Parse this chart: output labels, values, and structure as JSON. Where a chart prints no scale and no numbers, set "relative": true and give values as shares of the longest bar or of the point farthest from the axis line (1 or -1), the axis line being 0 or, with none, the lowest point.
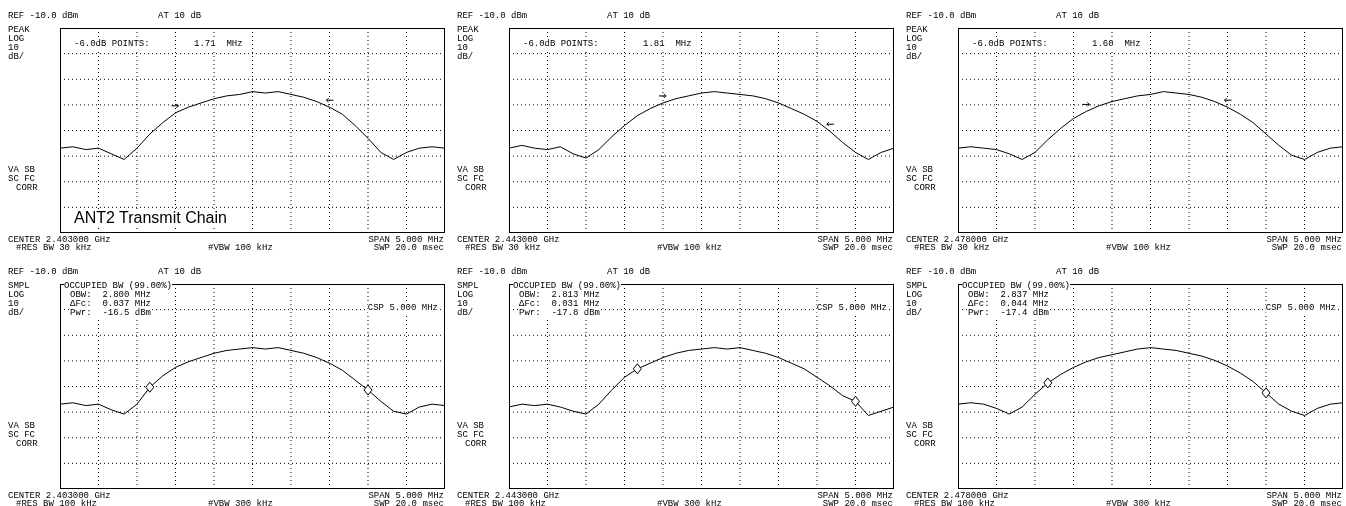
{
  "chart_data": [
    {
      "type": "line",
      "relative": true,
      "grid": true,
      "title": "ANT2 Transmit Chain",
      "categories": [
        null,
        null,
        null,
        null,
        null,
        null,
        null,
        null,
        null,
        null,
        null,
        null,
        null,
        null,
        null,
        null,
        null,
        null,
        null,
        null,
        null,
        null,
        null,
        null,
        null,
        null,
        null,
        null,
        null,
        null,
        null
      ],
      "annotations": [
        "REF -10.0 dBm",
        "AT 10 dB",
        "PEAK",
        "LOG",
        "10",
        "dB/",
        "-6.0dB POINTS:",
        "1.71  MHz",
        "VA SB",
        "SC FC",
        "CORR",
        "CENTER 2.403000 GHz",
        "#RES BW 30 kHz",
        "#VBW 100 kHz",
        "SPAN 5.000 MHz",
        "SWP 20.0 msec"
      ],
      "series": [
        {
          "color": "#000000",
          "values": [
            0.6,
            0.61,
            0.59,
            0.6,
            0.56,
            0.52,
            0.6,
            0.7,
            0.78,
            0.85,
            0.89,
            0.92,
            0.95,
            0.97,
            0.98,
            1.0,
            0.99,
            1.0,
            0.98,
            0.96,
            0.93,
            0.89,
            0.84,
            0.76,
            0.67,
            0.57,
            0.52,
            0.57,
            0.6,
            0.61,
            0.6
          ]
        }
      ]
    },
    {
      "type": "line",
      "relative": true,
      "grid": true,
      "categories": [
        null,
        null,
        null,
        null,
        null,
        null,
        null,
        null,
        null,
        null,
        null,
        null,
        null,
        null,
        null,
        null,
        null,
        null,
        null,
        null,
        null,
        null,
        null,
        null,
        null,
        null,
        null,
        null,
        null,
        null,
        null
      ],
      "annotations": [
        "REF -10.0 dBm",
        "AT 10 dB",
        "PEAK",
        "LOG",
        "10",
        "dB/",
        "-6.0dB POINTS:",
        "1.81  MHz",
        "VA SB",
        "SC FC",
        "CORR",
        "CENTER 2.443000 GHz",
        "#RES BW 30 kHz",
        "#VBW 100 kHz",
        "SPAN 5.000 MHz",
        "SWP 20.0 msec"
      ],
      "series": [
        {
          "color": "#000000",
          "values": [
            0.6,
            0.62,
            0.6,
            0.59,
            0.61,
            0.56,
            0.53,
            0.59,
            0.68,
            0.76,
            0.83,
            0.88,
            0.92,
            0.95,
            0.97,
            0.99,
            1.0,
            0.99,
            0.98,
            0.97,
            0.95,
            0.92,
            0.88,
            0.84,
            0.79,
            0.72,
            0.64,
            0.57,
            0.52,
            0.57,
            0.6
          ]
        }
      ]
    },
    {
      "type": "line",
      "relative": true,
      "grid": true,
      "categories": [
        null,
        null,
        null,
        null,
        null,
        null,
        null,
        null,
        null,
        null,
        null,
        null,
        null,
        null,
        null,
        null,
        null,
        null,
        null,
        null,
        null,
        null,
        null,
        null,
        null,
        null,
        null,
        null,
        null,
        null,
        null
      ],
      "annotations": [
        "REF -10.0 dBm",
        "AT 10 dB",
        "PEAK",
        "LOG",
        "10",
        "dB/",
        "-6.0dB POINTS:",
        "1.60  MHz",
        "VA SB",
        "SC FC",
        "CORR",
        "CENTER 2.478000 GHz",
        "#RES BW 30 kHz",
        "#VBW 100 kHz",
        "SPAN 5.000 MHz",
        "SWP 20.0 msec"
      ],
      "series": [
        {
          "color": "#000000",
          "values": [
            0.6,
            0.61,
            0.6,
            0.59,
            0.56,
            0.52,
            0.57,
            0.66,
            0.74,
            0.81,
            0.86,
            0.9,
            0.93,
            0.95,
            0.97,
            0.98,
            1.0,
            0.99,
            0.98,
            0.96,
            0.93,
            0.89,
            0.84,
            0.78,
            0.7,
            0.62,
            0.55,
            0.52,
            0.57,
            0.6,
            0.61
          ]
        }
      ]
    },
    {
      "type": "line",
      "relative": true,
      "grid": true,
      "categories": [
        null,
        null,
        null,
        null,
        null,
        null,
        null,
        null,
        null,
        null,
        null,
        null,
        null,
        null,
        null,
        null,
        null,
        null,
        null,
        null,
        null,
        null,
        null,
        null,
        null,
        null,
        null,
        null,
        null,
        null,
        null
      ],
      "annotations": [
        "REF -10.0 dBm",
        "AT 10 dB",
        "SMPL",
        "LOG",
        "10",
        "dB/",
        "OCCUPIED BW (99.00%)",
        "OBW:  2.800 MHz",
        "ΔFc:  0.037 MHz",
        "Pwr:  -16.5 dBm",
        "CSP 5.000 MHz",
        "VA SB",
        "SC FC",
        "CORR",
        "CENTER 2.403000 GHz",
        "#RES BW 100 kHz",
        "#VBW 300 kHz",
        "SPAN 5.000 MHz",
        "SWP 20.0 msec"
      ],
      "series": [
        {
          "color": "#000000",
          "values": [
            0.6,
            0.61,
            0.59,
            0.6,
            0.56,
            0.53,
            0.6,
            0.72,
            0.8,
            0.86,
            0.9,
            0.93,
            0.96,
            0.98,
            0.99,
            1.0,
            0.99,
            1.0,
            0.98,
            0.96,
            0.93,
            0.89,
            0.84,
            0.77,
            0.7,
            0.62,
            0.55,
            0.53,
            0.58,
            0.6,
            0.59
          ]
        }
      ]
    },
    {
      "type": "line",
      "relative": true,
      "grid": true,
      "categories": [
        null,
        null,
        null,
        null,
        null,
        null,
        null,
        null,
        null,
        null,
        null,
        null,
        null,
        null,
        null,
        null,
        null,
        null,
        null,
        null,
        null,
        null,
        null,
        null,
        null,
        null,
        null,
        null,
        null,
        null,
        null
      ],
      "annotations": [
        "REF -10.0 dBm",
        "AT 10 dB",
        "SMPL",
        "LOG",
        "10",
        "dB/",
        "OCCUPIED BW (99.00%)",
        "OBW:  2.813 MHz",
        "ΔFc:  0.031 MHz",
        "Pwr:  -17.8 dBm",
        "CSP 5.000 MHz",
        "VA SB",
        "SC FC",
        "CORR",
        "CENTER 2.443000 GHz",
        "#RES BW 100 kHz",
        "#VBW 300 kHz",
        "SPAN 5.000 MHz",
        "SWP 20.0 msec"
      ],
      "series": [
        {
          "color": "#000000",
          "values": [
            0.58,
            0.6,
            0.59,
            0.6,
            0.58,
            0.55,
            0.53,
            0.6,
            0.7,
            0.79,
            0.85,
            0.89,
            0.93,
            0.96,
            0.98,
            0.99,
            1.0,
            0.99,
            1.0,
            0.98,
            0.96,
            0.93,
            0.89,
            0.85,
            0.79,
            0.73,
            0.66,
            0.62,
            0.52,
            0.55,
            0.58
          ]
        }
      ]
    },
    {
      "type": "line",
      "relative": true,
      "grid": true,
      "categories": [
        null,
        null,
        null,
        null,
        null,
        null,
        null,
        null,
        null,
        null,
        null,
        null,
        null,
        null,
        null,
        null,
        null,
        null,
        null,
        null,
        null,
        null,
        null,
        null,
        null,
        null,
        null,
        null,
        null,
        null,
        null
      ],
      "annotations": [
        "REF -10.0 dBm",
        "AT 10 dB",
        "SMPL",
        "LOG",
        "10",
        "dB/",
        "OCCUPIED BW (99.00%)",
        "OBW:  2.837 MHz",
        "ΔFc:  0.044 MHz",
        "Pwr:  -17.4 dBm",
        "CSP 5.000 MHz",
        "VA SB",
        "SC FC",
        "CORR",
        "CENTER 2.478000 GHz",
        "#RES BW 100 kHz",
        "#VBW 300 kHz",
        "SPAN 5.000 MHz",
        "SWP 20.0 msec"
      ],
      "series": [
        {
          "color": "#000000",
          "values": [
            0.6,
            0.61,
            0.6,
            0.57,
            0.53,
            0.58,
            0.67,
            0.75,
            0.81,
            0.86,
            0.9,
            0.93,
            0.95,
            0.97,
            0.99,
            1.0,
            0.99,
            0.98,
            0.96,
            0.94,
            0.91,
            0.87,
            0.82,
            0.76,
            0.68,
            0.6,
            0.55,
            0.52,
            0.57,
            0.6,
            0.61
          ]
        }
      ]
    }
  ]
}
